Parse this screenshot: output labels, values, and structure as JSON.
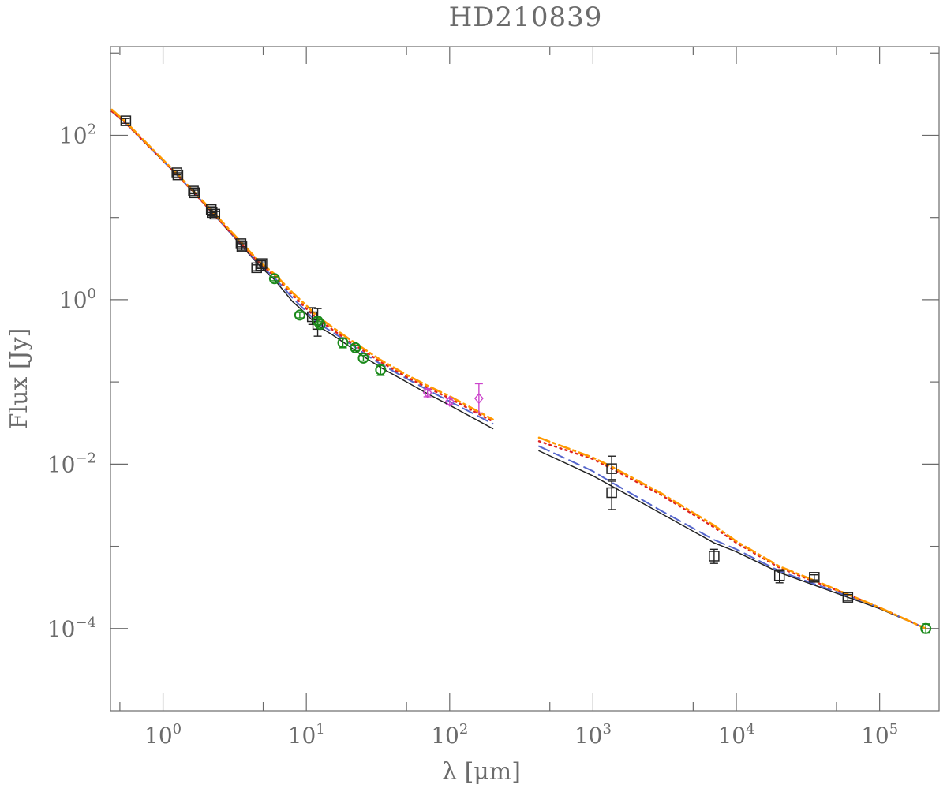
{
  "chart_data": {
    "type": "scatter",
    "title": "HD210839",
    "xlabel": "λ [μm]",
    "ylabel": "Flux [Jy]",
    "x_scale": "log",
    "y_scale": "log",
    "xlim": [
      0.43,
      260000
    ],
    "ylim": [
      1e-05,
      1200
    ],
    "x_ticks": [
      {
        "value": 1,
        "base": "10",
        "exp": "0"
      },
      {
        "value": 10,
        "base": "10",
        "exp": "1"
      },
      {
        "value": 100,
        "base": "10",
        "exp": "2"
      },
      {
        "value": 1000,
        "base": "10",
        "exp": "3"
      },
      {
        "value": 10000,
        "base": "10",
        "exp": "4"
      },
      {
        "value": 100000,
        "base": "10",
        "exp": "5"
      }
    ],
    "y_ticks": [
      {
        "value": 100,
        "base": "10",
        "exp": "2"
      },
      {
        "value": 1,
        "base": "10",
        "exp": "0"
      },
      {
        "value": 0.01,
        "base": "10",
        "exp": "−2"
      },
      {
        "value": 0.0001,
        "base": "10",
        "exp": "−4"
      }
    ],
    "grid": false,
    "colors": {
      "axis": "#6b6b6b",
      "black": "#222222",
      "green": "#1a8a1a",
      "magenta": "#cc44cc",
      "blue": "#5566cc",
      "red": "#dd2222",
      "orange": "#ff9900"
    },
    "model_lines": [
      {
        "style": "solid",
        "color": "#222222",
        "segments": [
          [
            [
              0.44,
              195
            ],
            [
              0.55,
              140
            ],
            [
              1.25,
              33
            ],
            [
              1.65,
              20
            ],
            [
              2.2,
              11.5
            ],
            [
              3.5,
              4.6
            ],
            [
              4.8,
              2.5
            ],
            [
              6,
              1.75
            ],
            [
              8,
              0.95
            ],
            [
              10,
              0.67
            ],
            [
              12,
              0.48
            ],
            [
              15,
              0.38
            ],
            [
              20,
              0.27
            ],
            [
              25,
              0.205
            ],
            [
              33,
              0.15
            ],
            [
              50,
              0.1
            ],
            [
              70,
              0.072
            ],
            [
              100,
              0.052
            ],
            [
              200,
              0.027
            ]
          ],
          [
            [
              420,
              0.0145
            ],
            [
              1000,
              0.0072
            ],
            [
              1350,
              0.0054
            ],
            [
              3000,
              0.0025
            ],
            [
              7000,
              0.0011
            ],
            [
              10000,
              0.00086
            ],
            [
              20000,
              0.00048
            ],
            [
              40000,
              0.00031
            ],
            [
              60000,
              0.00024
            ],
            [
              100000,
              0.000175
            ],
            [
              210000,
              0.0001
            ]
          ]
        ]
      },
      {
        "style": "dashed",
        "color": "#5566cc",
        "segments": [
          [
            [
              0.44,
              195
            ],
            [
              0.55,
              140
            ],
            [
              1.25,
              33
            ],
            [
              1.65,
              20
            ],
            [
              2.2,
              11.5
            ],
            [
              3.5,
              4.7
            ],
            [
              4.8,
              2.6
            ],
            [
              6,
              1.85
            ],
            [
              8,
              1.05
            ],
            [
              10,
              0.72
            ],
            [
              12,
              0.52
            ],
            [
              15,
              0.41
            ],
            [
              20,
              0.295
            ],
            [
              25,
              0.225
            ],
            [
              33,
              0.165
            ],
            [
              50,
              0.11
            ],
            [
              70,
              0.08
            ],
            [
              100,
              0.058
            ],
            [
              200,
              0.031
            ]
          ],
          [
            [
              420,
              0.0165
            ],
            [
              1000,
              0.0082
            ],
            [
              1350,
              0.006
            ],
            [
              3000,
              0.0027
            ],
            [
              7000,
              0.0012
            ],
            [
              10000,
              0.00092
            ],
            [
              20000,
              0.0005
            ],
            [
              40000,
              0.00032
            ],
            [
              60000,
              0.00025
            ],
            [
              100000,
              0.00018
            ],
            [
              210000,
              0.0001
            ]
          ]
        ]
      },
      {
        "style": "dotted",
        "color": "#dd2222",
        "segments": [
          [
            [
              0.44,
              195
            ],
            [
              0.55,
              140
            ],
            [
              1.25,
              33
            ],
            [
              1.65,
              20
            ],
            [
              2.2,
              11.5
            ],
            [
              3.5,
              4.8
            ],
            [
              4.8,
              2.7
            ],
            [
              6,
              1.95
            ],
            [
              8,
              1.15
            ],
            [
              10,
              0.78
            ],
            [
              12,
              0.58
            ],
            [
              15,
              0.44
            ],
            [
              20,
              0.31
            ],
            [
              25,
              0.24
            ],
            [
              33,
              0.175
            ],
            [
              50,
              0.115
            ],
            [
              70,
              0.085
            ],
            [
              100,
              0.063
            ],
            [
              200,
              0.033
            ]
          ],
          [
            [
              420,
              0.019
            ],
            [
              1000,
              0.0115
            ],
            [
              1350,
              0.0088
            ],
            [
              3000,
              0.0042
            ],
            [
              7000,
              0.0017
            ],
            [
              10000,
              0.0011
            ],
            [
              20000,
              0.00055
            ],
            [
              40000,
              0.00034
            ],
            [
              60000,
              0.00026
            ],
            [
              100000,
              0.00018
            ],
            [
              210000,
              0.0001
            ]
          ]
        ]
      },
      {
        "style": "dashdot",
        "color": "#ff9900",
        "segments": [
          [
            [
              0.44,
              205
            ],
            [
              0.55,
              145
            ],
            [
              1.25,
              34
            ],
            [
              1.65,
              20.5
            ],
            [
              2.2,
              12
            ],
            [
              3.5,
              5
            ],
            [
              4.8,
              2.8
            ],
            [
              6,
              2.05
            ],
            [
              8,
              1.22
            ],
            [
              10,
              0.85
            ],
            [
              12,
              0.62
            ],
            [
              15,
              0.47
            ],
            [
              20,
              0.33
            ],
            [
              25,
              0.255
            ],
            [
              33,
              0.185
            ],
            [
              50,
              0.122
            ],
            [
              70,
              0.09
            ],
            [
              100,
              0.067
            ],
            [
              200,
              0.035
            ]
          ],
          [
            [
              420,
              0.021
            ],
            [
              1000,
              0.012
            ],
            [
              1350,
              0.0093
            ],
            [
              3000,
              0.0044
            ],
            [
              7000,
              0.0018
            ],
            [
              10000,
              0.00115
            ],
            [
              20000,
              0.00057
            ],
            [
              40000,
              0.00035
            ],
            [
              60000,
              0.00026
            ],
            [
              100000,
              0.00018
            ],
            [
              210000,
              0.0001
            ]
          ]
        ]
      }
    ],
    "observations": [
      {
        "marker": "square",
        "color": "#222222",
        "points": [
          {
            "x": 0.55,
            "y": 150,
            "ylo": 140,
            "yhi": 160
          },
          {
            "x": 1.25,
            "y": 35,
            "ylo": 33,
            "yhi": 37
          },
          {
            "x": 1.27,
            "y": 33,
            "ylo": 31,
            "yhi": 35
          },
          {
            "x": 1.63,
            "y": 21,
            "ylo": 19.5,
            "yhi": 22.5
          },
          {
            "x": 1.66,
            "y": 20,
            "ylo": 18.5,
            "yhi": 21.5
          },
          {
            "x": 2.17,
            "y": 12.5,
            "ylo": 11.5,
            "yhi": 13.5
          },
          {
            "x": 2.2,
            "y": 11.5,
            "ylo": 10.5,
            "yhi": 12.5
          },
          {
            "x": 2.3,
            "y": 11,
            "ylo": 10.2,
            "yhi": 11.8
          },
          {
            "x": 3.5,
            "y": 4.8,
            "ylo": 4.4,
            "yhi": 5.2
          },
          {
            "x": 3.55,
            "y": 4.4,
            "ylo": 4.0,
            "yhi": 4.8
          },
          {
            "x": 4.5,
            "y": 2.45,
            "ylo": 2.25,
            "yhi": 2.65
          },
          {
            "x": 4.8,
            "y": 2.6,
            "ylo": 2.4,
            "yhi": 2.8
          },
          {
            "x": 4.9,
            "y": 2.75,
            "ylo": 2.5,
            "yhi": 3.0
          },
          {
            "x": 11,
            "y": 0.62,
            "ylo": 0.5,
            "yhi": 0.8
          },
          {
            "x": 12,
            "y": 0.5,
            "ylo": 0.36,
            "yhi": 0.78
          },
          {
            "x": 1350,
            "y": 0.0088,
            "ylo": 0.0065,
            "yhi": 0.0125
          },
          {
            "x": 1350,
            "y": 0.0045,
            "ylo": 0.0028,
            "yhi": 0.0062
          },
          {
            "x": 7000,
            "y": 0.00076,
            "ylo": 0.00062,
            "yhi": 0.00092
          },
          {
            "x": 20000,
            "y": 0.00044,
            "ylo": 0.00036,
            "yhi": 0.00052
          },
          {
            "x": 35000,
            "y": 0.00042,
            "ylo": 0.00039,
            "yhi": 0.00045
          },
          {
            "x": 60000,
            "y": 0.00024,
            "ylo": 0.00022,
            "yhi": 0.00026
          }
        ]
      },
      {
        "marker": "circle",
        "color": "#1a8a1a",
        "points": [
          {
            "x": 6,
            "y": 1.8,
            "ylo": 1.7,
            "yhi": 1.9
          },
          {
            "x": 9,
            "y": 0.65,
            "ylo": 0.6,
            "yhi": 0.7
          },
          {
            "x": 12,
            "y": 0.55,
            "ylo": 0.5,
            "yhi": 0.6
          },
          {
            "x": 12.5,
            "y": 0.5,
            "ylo": 0.46,
            "yhi": 0.54
          },
          {
            "x": 18,
            "y": 0.3,
            "ylo": 0.26,
            "yhi": 0.34
          },
          {
            "x": 22,
            "y": 0.26,
            "ylo": 0.24,
            "yhi": 0.28
          },
          {
            "x": 25,
            "y": 0.195,
            "ylo": 0.18,
            "yhi": 0.21
          },
          {
            "x": 33,
            "y": 0.14,
            "ylo": 0.12,
            "yhi": 0.16
          },
          {
            "x": 210000,
            "y": 0.0001,
            "ylo": 8.8e-05,
            "yhi": 0.000114
          }
        ]
      },
      {
        "marker": "diamond",
        "color": "#cc44cc",
        "points": [
          {
            "x": 70,
            "y": 0.074,
            "ylo": 0.066,
            "yhi": 0.082
          },
          {
            "x": 100,
            "y": 0.058,
            "ylo": 0.053,
            "yhi": 0.063
          },
          {
            "x": 160,
            "y": 0.063,
            "ylo": 0.042,
            "yhi": 0.095
          }
        ]
      }
    ]
  }
}
